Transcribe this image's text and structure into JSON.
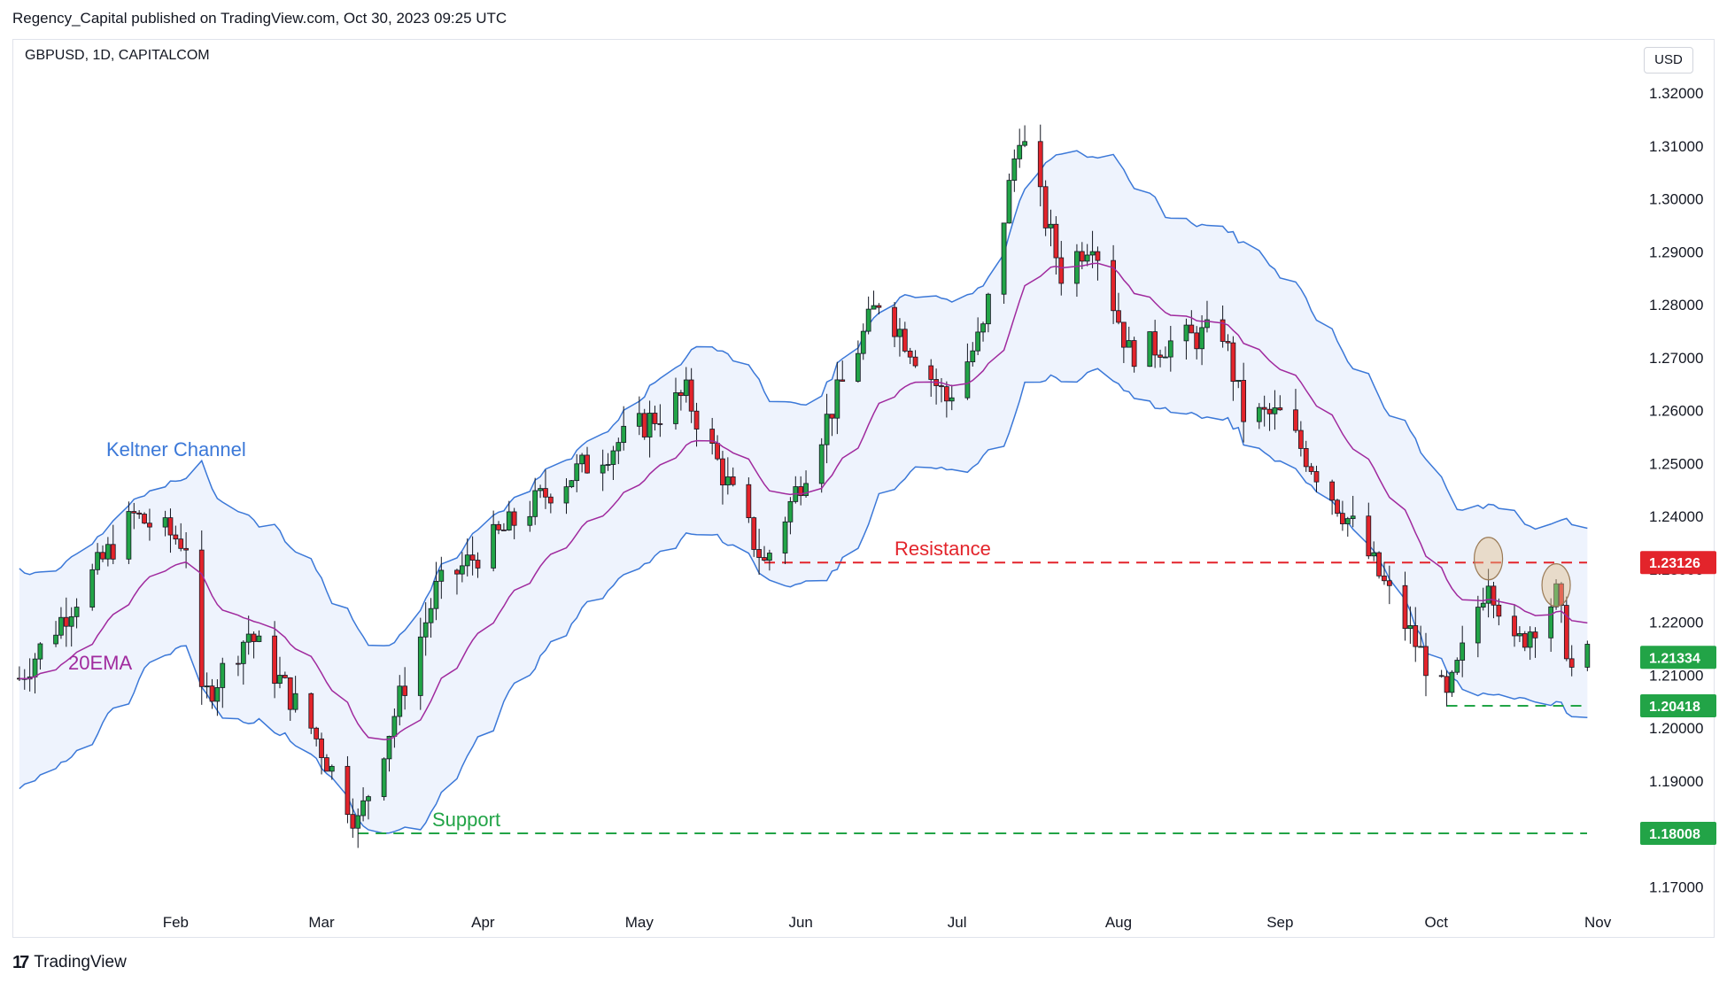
{
  "header": {
    "publisher": "Regency_Capital published on TradingView.com, Oct 30, 2023 09:25 UTC",
    "symbol": "GBPUSD, 1D, CAPITALCOM",
    "currency": "USD"
  },
  "footer": {
    "brand": "TradingView",
    "logo_icon": "tradingview-logo-icon"
  },
  "colors": {
    "up": "#22a447",
    "down": "#e3242b",
    "ema": "#a02a9e",
    "channel": "#3b78d8",
    "channel_fill": "#eef3fd",
    "resistance": "#e3242b",
    "support": "#22a447"
  },
  "chart_data": {
    "type": "candlestick",
    "ylim": [
      1.165,
      1.325
    ],
    "y_ticks": [
      "1.32000",
      "1.31000",
      "1.30000",
      "1.29000",
      "1.28000",
      "1.27000",
      "1.26000",
      "1.25000",
      "1.24000",
      "1.23000",
      "1.22000",
      "1.21000",
      "1.20000",
      "1.19000",
      "1.18000",
      "1.17000"
    ],
    "x_range": [
      "2023-01-01",
      "2023-11-02"
    ],
    "months": [
      {
        "label": "Feb",
        "date": "2023-02-01"
      },
      {
        "label": "Mar",
        "date": "2023-03-01"
      },
      {
        "label": "Apr",
        "date": "2023-04-01"
      },
      {
        "label": "May",
        "date": "2023-05-01"
      },
      {
        "label": "Jun",
        "date": "2023-06-01"
      },
      {
        "label": "Jul",
        "date": "2023-07-01"
      },
      {
        "label": "Aug",
        "date": "2023-08-01"
      },
      {
        "label": "Sep",
        "date": "2023-09-01"
      },
      {
        "label": "Oct",
        "date": "2023-10-01"
      },
      {
        "label": "Nov",
        "date": "2023-11-01"
      }
    ],
    "price_path": [
      {
        "date": "2023-01-01",
        "close": 1.208
      },
      {
        "date": "2023-01-24",
        "close": 1.24
      },
      {
        "date": "2023-02-03",
        "close": 1.235
      },
      {
        "date": "2023-02-06",
        "close": 1.205
      },
      {
        "date": "2023-02-15",
        "close": 1.218
      },
      {
        "date": "2023-02-27",
        "close": 1.2
      },
      {
        "date": "2023-03-08",
        "close": 1.182
      },
      {
        "date": "2023-03-23",
        "close": 1.226
      },
      {
        "date": "2023-04-14",
        "close": 1.245
      },
      {
        "date": "2023-05-10",
        "close": 1.263
      },
      {
        "date": "2023-05-25",
        "close": 1.231
      },
      {
        "date": "2023-06-16",
        "close": 1.281
      },
      {
        "date": "2023-06-29",
        "close": 1.262
      },
      {
        "date": "2023-07-06",
        "close": 1.275
      },
      {
        "date": "2023-07-13",
        "close": 1.313
      },
      {
        "date": "2023-07-21",
        "close": 1.286
      },
      {
        "date": "2023-07-27",
        "close": 1.293
      },
      {
        "date": "2023-08-03",
        "close": 1.271
      },
      {
        "date": "2023-08-21",
        "close": 1.275
      },
      {
        "date": "2023-08-25",
        "close": 1.259
      },
      {
        "date": "2023-09-01",
        "close": 1.259
      },
      {
        "date": "2023-09-15",
        "close": 1.238
      },
      {
        "date": "2023-10-03",
        "close": 1.205
      },
      {
        "date": "2023-10-11",
        "close": 1.229
      },
      {
        "date": "2023-10-16",
        "close": 1.215
      },
      {
        "date": "2023-10-24",
        "close": 1.225
      },
      {
        "date": "2023-10-27",
        "close": 1.211
      },
      {
        "date": "2023-10-30",
        "close": 1.2133
      }
    ],
    "indicators": {
      "ema": {
        "label": "20EMA",
        "period": 20
      },
      "keltner": {
        "label": "Keltner Channel"
      }
    },
    "levels": [
      {
        "name": "Resistance",
        "price": 1.23126,
        "tag": "1.23126",
        "start_date": "2023-05-25",
        "style": "dashed"
      },
      {
        "name": "Support",
        "price": 1.18008,
        "tag": "1.18008",
        "start_date": "2023-03-08",
        "style": "dashed"
      },
      {
        "name": "",
        "price": 1.20418,
        "tag": "1.20418",
        "start_date": "2023-10-03",
        "style": "dashed"
      }
    ],
    "last_price": {
      "price": 1.21334,
      "tag": "1.21334"
    },
    "highlights": [
      {
        "date": "2023-10-11",
        "price": 1.231
      },
      {
        "date": "2023-10-24",
        "price": 1.226
      }
    ]
  }
}
